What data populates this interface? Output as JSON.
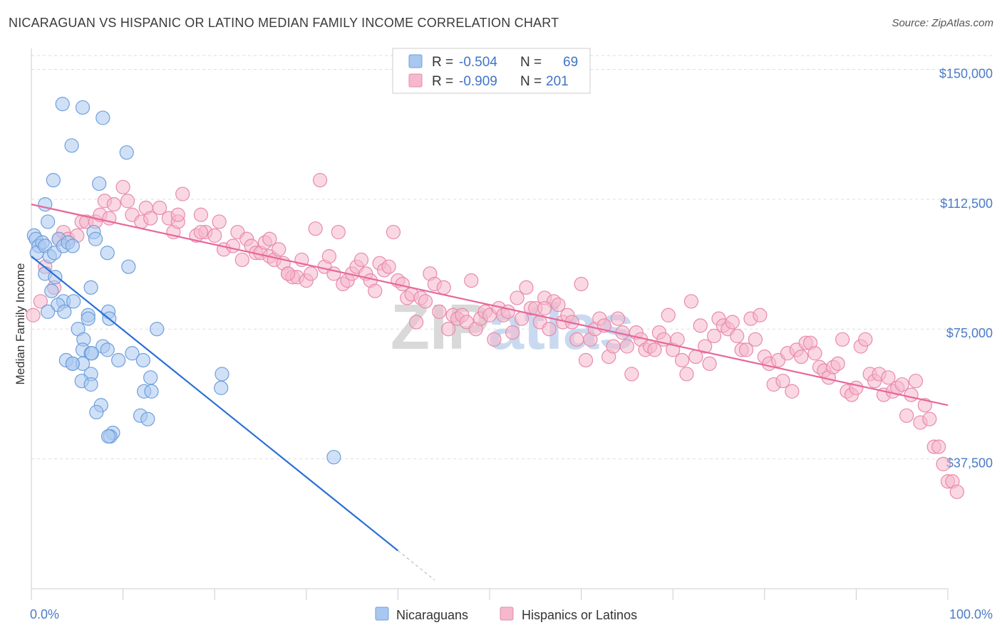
{
  "header": {
    "title": "NICARAGUAN VS HISPANIC OR LATINO MEDIAN FAMILY INCOME CORRELATION CHART",
    "source": "Source: ZipAtlas.com"
  },
  "watermark": {
    "zip": "ZIP",
    "atlas": "atlas"
  },
  "legend_box": {
    "rows": [
      {
        "r_label": "R =",
        "r_value": "-0.504",
        "n_label": "N =",
        "n_value": "69",
        "color": "#a9c8f0"
      },
      {
        "r_label": "R =",
        "r_value": "-0.909",
        "n_label": "N =",
        "n_value": "201",
        "color": "#f5b8cc"
      }
    ]
  },
  "bottom_legend": {
    "items": [
      {
        "label": "Nicaraguans",
        "color": "#a9c8f0"
      },
      {
        "label": "Hispanics or Latinos",
        "color": "#f5b8cc"
      }
    ]
  },
  "chart_data": {
    "type": "scatter",
    "title": "NICARAGUAN VS HISPANIC OR LATINO MEDIAN FAMILY INCOME CORRELATION CHART",
    "xlabel": "",
    "ylabel": "Median Family Income",
    "xlim": [
      0,
      100
    ],
    "ylim": [
      0,
      154000
    ],
    "x_tick_labels": [
      "0.0%",
      "100.0%"
    ],
    "y_ticks": [
      37500,
      75000,
      112500,
      150000
    ],
    "y_tick_labels": [
      "$37,500",
      "$75,000",
      "$112,500",
      "$150,000"
    ],
    "grid": true,
    "legend_position": "top-center",
    "colors": {
      "nicaraguans_fill": "#a9c8f0",
      "nicaraguans_line": "#2a6fd6",
      "hispanics_fill": "#f5b8cc",
      "hispanics_line": "#e8679a"
    },
    "series": [
      {
        "name": "Nicaraguans",
        "r": -0.504,
        "n": 69,
        "trend": {
          "x": [
            0,
            40
          ],
          "y": [
            96000,
            11000
          ],
          "dashed_extension_to_x": 44
        },
        "points": [
          [
            0.3,
            102
          ],
          [
            0.5,
            101
          ],
          [
            0.8,
            99
          ],
          [
            0.6,
            97
          ],
          [
            1.2,
            100
          ],
          [
            1.5,
            99
          ],
          [
            2,
            96
          ],
          [
            2.5,
            97
          ],
          [
            3,
            101
          ],
          [
            3.5,
            99
          ],
          [
            4,
            100
          ],
          [
            4.5,
            99
          ],
          [
            3.4,
            140
          ],
          [
            5.6,
            139
          ],
          [
            7.8,
            136
          ],
          [
            4.4,
            128
          ],
          [
            10.4,
            126
          ],
          [
            2.4,
            118
          ],
          [
            7.4,
            117
          ],
          [
            1.5,
            111
          ],
          [
            1.8,
            106
          ],
          [
            6.8,
            103
          ],
          [
            7,
            101
          ],
          [
            8.3,
            97
          ],
          [
            10.6,
            93
          ],
          [
            1.5,
            91
          ],
          [
            2.6,
            90
          ],
          [
            6.5,
            87
          ],
          [
            2.2,
            86
          ],
          [
            3.5,
            83
          ],
          [
            4.6,
            83
          ],
          [
            2.9,
            82
          ],
          [
            1.8,
            80
          ],
          [
            3.6,
            80
          ],
          [
            6.2,
            79
          ],
          [
            8.4,
            80
          ],
          [
            8.5,
            78
          ],
          [
            6.2,
            78
          ],
          [
            5.1,
            75
          ],
          [
            13.7,
            75
          ],
          [
            5.7,
            72
          ],
          [
            5.6,
            69
          ],
          [
            7.8,
            70
          ],
          [
            8.3,
            69
          ],
          [
            11,
            68
          ],
          [
            3.8,
            66
          ],
          [
            4.5,
            65
          ],
          [
            6.5,
            68
          ],
          [
            5.6,
            65
          ],
          [
            4.5,
            65
          ],
          [
            9.5,
            66
          ],
          [
            12.2,
            66
          ],
          [
            6.5,
            62
          ],
          [
            13,
            61
          ],
          [
            5.5,
            60
          ],
          [
            6.5,
            59
          ],
          [
            20.8,
            62
          ],
          [
            20.7,
            58
          ],
          [
            12.3,
            57
          ],
          [
            13.1,
            57
          ],
          [
            7.6,
            53
          ],
          [
            7.1,
            51
          ],
          [
            11.9,
            50
          ],
          [
            12.7,
            49
          ],
          [
            8.9,
            45
          ],
          [
            8.6,
            44
          ],
          [
            8.4,
            44
          ],
          [
            33,
            38
          ],
          [
            6.6,
            68
          ]
        ]
      },
      {
        "name": "Hispanics or Latinos",
        "r": -0.909,
        "n": 201,
        "trend": {
          "x": [
            0,
            100
          ],
          "y": [
            111000,
            53000
          ]
        },
        "points": [
          [
            0.2,
            79
          ],
          [
            1,
            83
          ],
          [
            1.5,
            93
          ],
          [
            2.5,
            87
          ],
          [
            3,
            101
          ],
          [
            3.5,
            103
          ],
          [
            4,
            101
          ],
          [
            5,
            102
          ],
          [
            5.5,
            106
          ],
          [
            6,
            106
          ],
          [
            7,
            106
          ],
          [
            7.5,
            108
          ],
          [
            8.5,
            107
          ],
          [
            8,
            112
          ],
          [
            9,
            111
          ],
          [
            10,
            116
          ],
          [
            10.5,
            112
          ],
          [
            11,
            108
          ],
          [
            12,
            106
          ],
          [
            12.5,
            110
          ],
          [
            13,
            107
          ],
          [
            14,
            110
          ],
          [
            15,
            107
          ],
          [
            15.5,
            103
          ],
          [
            16,
            106
          ],
          [
            16.5,
            114
          ],
          [
            18,
            102
          ],
          [
            18.5,
            108
          ],
          [
            19,
            103
          ],
          [
            20,
            102
          ],
          [
            20.5,
            106
          ],
          [
            21,
            98
          ],
          [
            22,
            99
          ],
          [
            22.5,
            103
          ],
          [
            23,
            95
          ],
          [
            23.5,
            101
          ],
          [
            24,
            99
          ],
          [
            24.5,
            97
          ],
          [
            25,
            97
          ],
          [
            25.5,
            100
          ],
          [
            26,
            96
          ],
          [
            26.5,
            95
          ],
          [
            27,
            98
          ],
          [
            27.5,
            94
          ],
          [
            28,
            91
          ],
          [
            28.5,
            90
          ],
          [
            29,
            90
          ],
          [
            29.5,
            95
          ],
          [
            30,
            89
          ],
          [
            30.5,
            91
          ],
          [
            31,
            104
          ],
          [
            31.5,
            118
          ],
          [
            32,
            93
          ],
          [
            32.5,
            96
          ],
          [
            33,
            91
          ],
          [
            33.5,
            103
          ],
          [
            34,
            88
          ],
          [
            34.5,
            89
          ],
          [
            35,
            91
          ],
          [
            35.5,
            93
          ],
          [
            36,
            95
          ],
          [
            36.5,
            91
          ],
          [
            37,
            89
          ],
          [
            37.5,
            86
          ],
          [
            38,
            94
          ],
          [
            38.5,
            92
          ],
          [
            39,
            93
          ],
          [
            39.5,
            103
          ],
          [
            40,
            89
          ],
          [
            40.5,
            88
          ],
          [
            41,
            84
          ],
          [
            41.5,
            85
          ],
          [
            42,
            77
          ],
          [
            42.5,
            84
          ],
          [
            43,
            83
          ],
          [
            43.5,
            91
          ],
          [
            44,
            88
          ],
          [
            44.5,
            80
          ],
          [
            45,
            87
          ],
          [
            45.5,
            75
          ],
          [
            46,
            79
          ],
          [
            46.5,
            78
          ],
          [
            47,
            79
          ],
          [
            47.5,
            77
          ],
          [
            48,
            89
          ],
          [
            48.5,
            75
          ],
          [
            49,
            78
          ],
          [
            49.5,
            80
          ],
          [
            50,
            79
          ],
          [
            50.5,
            72
          ],
          [
            51,
            81
          ],
          [
            51.5,
            79
          ],
          [
            52,
            80
          ],
          [
            52.5,
            74
          ],
          [
            53,
            84
          ],
          [
            53.5,
            78
          ],
          [
            54,
            87
          ],
          [
            54.5,
            81
          ],
          [
            55,
            81
          ],
          [
            55.5,
            77
          ],
          [
            56,
            84
          ],
          [
            56.5,
            75
          ],
          [
            57,
            83
          ],
          [
            57.5,
            82
          ],
          [
            58,
            77
          ],
          [
            58.5,
            79
          ],
          [
            59,
            77
          ],
          [
            59.5,
            72
          ],
          [
            60,
            88
          ],
          [
            60.5,
            66
          ],
          [
            61,
            72
          ],
          [
            61.5,
            75
          ],
          [
            62,
            78
          ],
          [
            62.5,
            76
          ],
          [
            63,
            67
          ],
          [
            63.5,
            70
          ],
          [
            64,
            78
          ],
          [
            64.5,
            74
          ],
          [
            65,
            70
          ],
          [
            65.5,
            62
          ],
          [
            66,
            74
          ],
          [
            66.5,
            72
          ],
          [
            67,
            69
          ],
          [
            67.5,
            70
          ],
          [
            68,
            69
          ],
          [
            68.5,
            74
          ],
          [
            69,
            72
          ],
          [
            69.5,
            79
          ],
          [
            70,
            69
          ],
          [
            70.5,
            72
          ],
          [
            71,
            66
          ],
          [
            71.5,
            62
          ],
          [
            72,
            83
          ],
          [
            72.5,
            67
          ],
          [
            73,
            76
          ],
          [
            73.5,
            70
          ],
          [
            74,
            65
          ],
          [
            74.5,
            73
          ],
          [
            75,
            78
          ],
          [
            75.5,
            76
          ],
          [
            76,
            75
          ],
          [
            76.5,
            77
          ],
          [
            77,
            73
          ],
          [
            77.5,
            69
          ],
          [
            78,
            69
          ],
          [
            78.5,
            78
          ],
          [
            79,
            72
          ],
          [
            79.5,
            79
          ],
          [
            80,
            67
          ],
          [
            80.5,
            65
          ],
          [
            81,
            59
          ],
          [
            81.5,
            66
          ],
          [
            82,
            60
          ],
          [
            82.5,
            68
          ],
          [
            83,
            57
          ],
          [
            83.5,
            69
          ],
          [
            84,
            67
          ],
          [
            84.5,
            71
          ],
          [
            85,
            71
          ],
          [
            85.5,
            68
          ],
          [
            86,
            64
          ],
          [
            86.5,
            63
          ],
          [
            87,
            61
          ],
          [
            87.5,
            64
          ],
          [
            88,
            65
          ],
          [
            88.5,
            72
          ],
          [
            89,
            57
          ],
          [
            89.5,
            56
          ],
          [
            90,
            58
          ],
          [
            90.5,
            70
          ],
          [
            91,
            72
          ],
          [
            91.5,
            62
          ],
          [
            92,
            60
          ],
          [
            92.5,
            62
          ],
          [
            93,
            56
          ],
          [
            93.5,
            61
          ],
          [
            94,
            57
          ],
          [
            94.5,
            58
          ],
          [
            95,
            59
          ],
          [
            95.5,
            50
          ],
          [
            96,
            56
          ],
          [
            96.5,
            60
          ],
          [
            97,
            48
          ],
          [
            97.5,
            53
          ],
          [
            98,
            49
          ],
          [
            98.5,
            41
          ],
          [
            99,
            41
          ],
          [
            99.5,
            36
          ],
          [
            100,
            31
          ],
          [
            100.5,
            31
          ],
          [
            101,
            28
          ],
          [
            56,
            81
          ],
          [
            28,
            91
          ],
          [
            18.5,
            103
          ],
          [
            16,
            108
          ],
          [
            26,
            101
          ]
        ]
      }
    ]
  }
}
